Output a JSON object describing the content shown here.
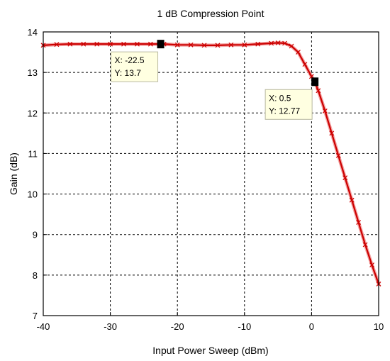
{
  "chart_data": {
    "type": "line",
    "title": "1 dB Compression Point",
    "xlabel": "Input Power Sweep (dBm)",
    "ylabel": "Gain (dB)",
    "xlim": [
      -40,
      10
    ],
    "ylim": [
      7,
      14
    ],
    "xticks": [
      -40,
      -30,
      -20,
      -10,
      0,
      10
    ],
    "yticks": [
      7,
      8,
      9,
      10,
      11,
      12,
      13,
      14
    ],
    "grid": true,
    "colors": {
      "line": "#cc0000",
      "halo": "#f4a6a6",
      "marker": "#000000",
      "tip_bg": "#ffffe1"
    },
    "series": [
      {
        "x": [
          -40,
          -38,
          -36,
          -34,
          -32,
          -30,
          -28,
          -26,
          -24,
          -22,
          -20,
          -18,
          -16,
          -14,
          -12,
          -10,
          -8,
          -6,
          -5,
          -4,
          -3,
          -2,
          -1,
          0,
          0.5,
          1,
          2,
          3,
          4,
          5,
          6,
          7,
          8,
          9,
          10
        ],
        "y": [
          13.67,
          13.69,
          13.7,
          13.7,
          13.7,
          13.7,
          13.7,
          13.7,
          13.7,
          13.7,
          13.68,
          13.68,
          13.67,
          13.67,
          13.68,
          13.68,
          13.7,
          13.72,
          13.73,
          13.72,
          13.65,
          13.5,
          13.2,
          12.9,
          12.77,
          12.55,
          12.05,
          11.5,
          10.95,
          10.4,
          9.85,
          9.3,
          8.75,
          8.25,
          7.78
        ]
      }
    ],
    "annotations": [
      {
        "x": -22.5,
        "y": 13.7,
        "x_label": "X: -22.5",
        "y_label": "Y: 13.7"
      },
      {
        "x": 0.5,
        "y": 12.77,
        "x_label": "X: 0.5",
        "y_label": "Y: 12.77"
      }
    ]
  }
}
